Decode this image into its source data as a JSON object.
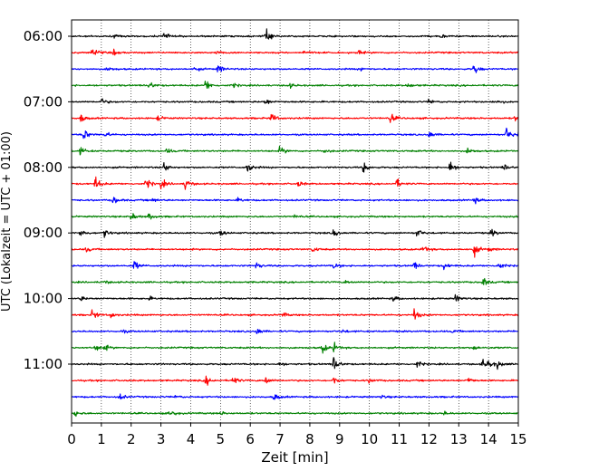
{
  "chart_data": {
    "type": "line",
    "subtype": "helicorder-seismogram",
    "xlabel": "Zeit  [min]",
    "ylabel": "UTC (Lokalzeit = UTC + 01:00)",
    "xlim": [
      0,
      15
    ],
    "x_ticks": [
      0,
      1,
      2,
      3,
      4,
      5,
      6,
      7,
      8,
      9,
      10,
      11,
      12,
      13,
      14,
      15
    ],
    "x_tick_labels": [
      "0",
      "1",
      "2",
      "3",
      "4",
      "5",
      "6",
      "7",
      "8",
      "9",
      "10",
      "11",
      "12",
      "13",
      "14",
      "15"
    ],
    "y_ticks": [
      {
        "label": "06:00",
        "row": 0
      },
      {
        "label": "07:00",
        "row": 4
      },
      {
        "label": "08:00",
        "row": 8
      },
      {
        "label": "09:00",
        "row": 12
      },
      {
        "label": "10:00",
        "row": 16
      },
      {
        "label": "11:00",
        "row": 20
      }
    ],
    "grid": {
      "vertical": true,
      "style": "dotted"
    },
    "line_colors": [
      "#000000",
      "#ff0000",
      "#0000ff",
      "#008000"
    ],
    "rows": 24,
    "minutes_per_row": 15,
    "events": [
      [
        0,
        3.1,
        0.45
      ],
      [
        0,
        6.5,
        1.0
      ],
      [
        0,
        1.4,
        0.2
      ],
      [
        0,
        12.4,
        0.2
      ],
      [
        1,
        0.7,
        0.75
      ],
      [
        1,
        1.4,
        0.3
      ],
      [
        1,
        4.9,
        0.25
      ],
      [
        1,
        7.8,
        0.25
      ],
      [
        1,
        9.6,
        0.3
      ],
      [
        2,
        1.2,
        0.3
      ],
      [
        2,
        4.1,
        0.35
      ],
      [
        2,
        4.9,
        0.6
      ],
      [
        2,
        9.7,
        0.25
      ],
      [
        2,
        13.5,
        0.7
      ],
      [
        3,
        2.6,
        0.5
      ],
      [
        3,
        4.5,
        0.8
      ],
      [
        3,
        5.4,
        0.3
      ],
      [
        3,
        7.3,
        0.3
      ],
      [
        3,
        11.3,
        0.3
      ],
      [
        4,
        1.0,
        0.4
      ],
      [
        4,
        6.5,
        0.45
      ],
      [
        4,
        12.0,
        0.3
      ],
      [
        4,
        14.3,
        0.3
      ],
      [
        5,
        0.3,
        0.5
      ],
      [
        5,
        2.9,
        0.3
      ],
      [
        5,
        6.7,
        0.7
      ],
      [
        5,
        10.7,
        0.6
      ],
      [
        5,
        14.9,
        0.4
      ],
      [
        6,
        0.4,
        0.8
      ],
      [
        6,
        1.1,
        0.4
      ],
      [
        6,
        12.0,
        0.5
      ],
      [
        6,
        14.6,
        0.9
      ],
      [
        6,
        15.0,
        0.5
      ],
      [
        7,
        0.3,
        0.5
      ],
      [
        7,
        3.2,
        0.3
      ],
      [
        7,
        7.0,
        0.55
      ],
      [
        7,
        8.5,
        0.3
      ],
      [
        7,
        13.3,
        0.4
      ],
      [
        8,
        3.1,
        0.6
      ],
      [
        8,
        5.9,
        0.7
      ],
      [
        8,
        9.8,
        0.7
      ],
      [
        8,
        12.7,
        0.85
      ],
      [
        8,
        14.5,
        0.5
      ],
      [
        9,
        0.8,
        0.9
      ],
      [
        9,
        2.5,
        0.7
      ],
      [
        9,
        3.0,
        0.6
      ],
      [
        9,
        3.8,
        0.8
      ],
      [
        9,
        7.6,
        0.4
      ],
      [
        9,
        10.9,
        0.6
      ],
      [
        10,
        1.4,
        0.5
      ],
      [
        10,
        2.7,
        0.3
      ],
      [
        10,
        5.6,
        0.3
      ],
      [
        10,
        13.5,
        0.45
      ],
      [
        11,
        2.0,
        0.5
      ],
      [
        11,
        2.6,
        0.5
      ],
      [
        11,
        7.5,
        0.2
      ],
      [
        12,
        0.3,
        0.6
      ],
      [
        12,
        1.1,
        0.5
      ],
      [
        12,
        5.0,
        0.4
      ],
      [
        12,
        8.8,
        0.6
      ],
      [
        12,
        11.6,
        0.6
      ],
      [
        12,
        14.1,
        0.5
      ],
      [
        13,
        0.5,
        0.3
      ],
      [
        13,
        8.1,
        0.4
      ],
      [
        13,
        11.8,
        0.5
      ],
      [
        13,
        13.5,
        0.8
      ],
      [
        13,
        14.0,
        0.3
      ],
      [
        14,
        2.1,
        0.6
      ],
      [
        14,
        6.2,
        0.4
      ],
      [
        14,
        8.8,
        0.4
      ],
      [
        14,
        11.5,
        0.5
      ],
      [
        14,
        12.5,
        0.45
      ],
      [
        14,
        14.3,
        0.7
      ],
      [
        15,
        13.8,
        0.6
      ],
      [
        15,
        1.1,
        0.2
      ],
      [
        15,
        9.2,
        0.2
      ],
      [
        16,
        0.3,
        0.3
      ],
      [
        16,
        2.6,
        0.2
      ],
      [
        16,
        10.8,
        0.3
      ],
      [
        16,
        12.9,
        0.5
      ],
      [
        17,
        0.7,
        0.6
      ],
      [
        17,
        1.3,
        0.4
      ],
      [
        17,
        11.5,
        0.75
      ],
      [
        17,
        7.1,
        0.25
      ],
      [
        18,
        6.2,
        0.6
      ],
      [
        18,
        1.7,
        0.2
      ],
      [
        18,
        9.1,
        0.2
      ],
      [
        18,
        12.8,
        0.2
      ],
      [
        19,
        0.8,
        0.4
      ],
      [
        19,
        1.1,
        0.4
      ],
      [
        19,
        8.4,
        0.7
      ],
      [
        19,
        8.8,
        0.6
      ],
      [
        19,
        13.5,
        0.3
      ],
      [
        20,
        8.8,
        1.0
      ],
      [
        20,
        11.6,
        0.4
      ],
      [
        20,
        13.8,
        0.6
      ],
      [
        20,
        14.0,
        0.6
      ],
      [
        20,
        14.3,
        0.5
      ],
      [
        20,
        7.0,
        0.25
      ],
      [
        21,
        4.5,
        0.6
      ],
      [
        21,
        5.4,
        0.6
      ],
      [
        21,
        6.5,
        0.6
      ],
      [
        21,
        8.8,
        0.5
      ],
      [
        21,
        10.0,
        0.3
      ],
      [
        21,
        13.3,
        0.4
      ],
      [
        22,
        1.6,
        0.4
      ],
      [
        22,
        6.8,
        0.5
      ],
      [
        22,
        3.5,
        0.2
      ],
      [
        22,
        10.4,
        0.2
      ],
      [
        23,
        3.3,
        0.5
      ],
      [
        23,
        0.1,
        0.4
      ],
      [
        23,
        5.0,
        0.2
      ],
      [
        23,
        12.5,
        0.2
      ]
    ]
  }
}
